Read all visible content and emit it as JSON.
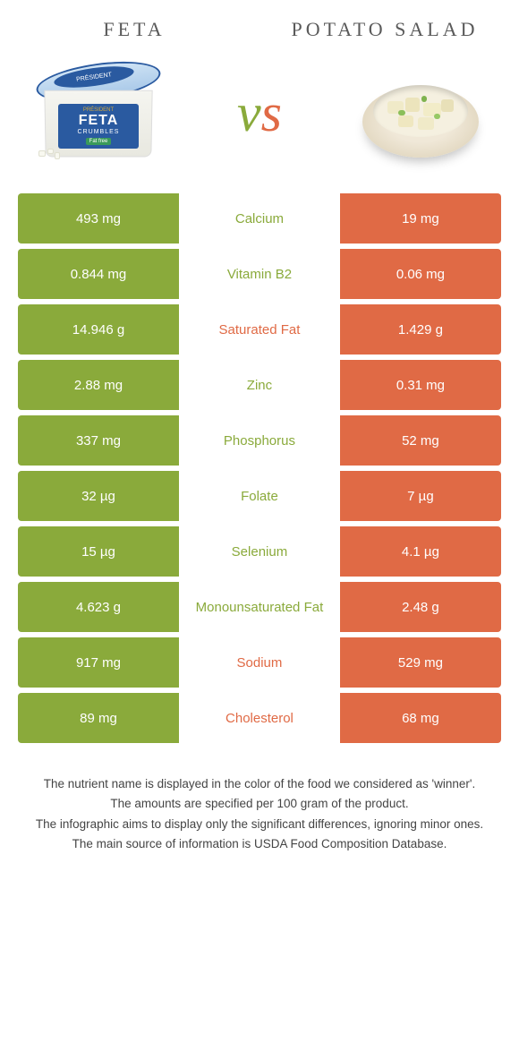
{
  "colors": {
    "left": "#8aaa3b",
    "right": "#e06a45",
    "left_vs": "#8aaa3b",
    "right_vs": "#e06a45",
    "title": "#5a5a5a",
    "background": "#ffffff"
  },
  "header": {
    "left": "Feta",
    "right": "Potato Salad"
  },
  "vs": {
    "v": "v",
    "s": "s"
  },
  "rows": [
    {
      "left": "493 mg",
      "label": "Calcium",
      "right": "19 mg",
      "winner": "left"
    },
    {
      "left": "0.844 mg",
      "label": "Vitamin B2",
      "right": "0.06 mg",
      "winner": "left"
    },
    {
      "left": "14.946 g",
      "label": "Saturated Fat",
      "right": "1.429 g",
      "winner": "right"
    },
    {
      "left": "2.88 mg",
      "label": "Zinc",
      "right": "0.31 mg",
      "winner": "left"
    },
    {
      "left": "337 mg",
      "label": "Phosphorus",
      "right": "52 mg",
      "winner": "left"
    },
    {
      "left": "32 µg",
      "label": "Folate",
      "right": "7 µg",
      "winner": "left"
    },
    {
      "left": "15 µg",
      "label": "Selenium",
      "right": "4.1 µg",
      "winner": "left"
    },
    {
      "left": "4.623 g",
      "label": "Monounsaturated Fat",
      "right": "2.48 g",
      "winner": "left"
    },
    {
      "left": "917 mg",
      "label": "Sodium",
      "right": "529 mg",
      "winner": "right"
    },
    {
      "left": "89 mg",
      "label": "Cholesterol",
      "right": "68 mg",
      "winner": "right"
    }
  ],
  "footer": {
    "line1": "The nutrient name is displayed in the color of the food we considered as 'winner'.",
    "line2": "The amounts are specified per 100 gram of the product.",
    "line3": "The infographic aims to display only the significant differences, ignoring minor ones.",
    "line4": "The main source of information is USDA Food Composition Database."
  },
  "product_labels": {
    "feta_brand": "PRÉSIDENT",
    "feta_name": "FETA",
    "feta_sub": "CRUMBLES",
    "feta_tag": "Fat free"
  }
}
